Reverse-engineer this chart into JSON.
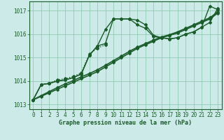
{
  "bg_color": "#cceae7",
  "grid_color": "#88c4aa",
  "line_color": "#1a5c2a",
  "title": "Graphe pression niveau de la mer (hPa)",
  "xlim": [
    -0.5,
    23.5
  ],
  "ylim": [
    1012.8,
    1017.4
  ],
  "yticks": [
    1013,
    1014,
    1015,
    1016,
    1017
  ],
  "xticks": [
    0,
    1,
    2,
    3,
    4,
    5,
    6,
    7,
    8,
    9,
    10,
    11,
    12,
    13,
    14,
    15,
    16,
    17,
    18,
    19,
    20,
    21,
    22,
    23
  ],
  "series": [
    {
      "x": [
        0,
        1,
        2,
        3,
        4,
        5,
        6,
        7,
        8,
        9,
        10,
        11,
        12,
        13,
        14,
        15,
        16,
        17,
        18,
        19,
        20,
        21,
        22,
        23
      ],
      "y": [
        1013.2,
        1013.85,
        1013.9,
        1014.0,
        1014.05,
        1014.15,
        1014.3,
        1015.1,
        1015.5,
        1016.2,
        1016.65,
        1016.65,
        1016.65,
        1016.4,
        1016.25,
        1015.9,
        1015.85,
        1015.8,
        1015.85,
        1016.0,
        1016.1,
        1016.3,
        1016.5,
        1017.1
      ],
      "marker": "D",
      "markersize": 2.0,
      "linewidth": 1.0,
      "linestyle": "-"
    },
    {
      "x": [
        0,
        1,
        2,
        3,
        4,
        5,
        6,
        7,
        8,
        9,
        10,
        11,
        12,
        13,
        14,
        15,
        16,
        17,
        18,
        19,
        20,
        21,
        22,
        23
      ],
      "y": [
        1013.2,
        1013.85,
        1013.9,
        1014.0,
        1014.05,
        1014.15,
        1014.3,
        1015.1,
        1015.5,
        1015.6,
        1016.65,
        1016.65,
        1016.65,
        1016.6,
        1016.4,
        1015.95,
        1015.85,
        1015.8,
        1015.85,
        1016.0,
        1016.1,
        1016.3,
        1017.2,
        1017.05
      ],
      "marker": "D",
      "markersize": 2.0,
      "linewidth": 1.0,
      "linestyle": "-"
    },
    {
      "x": [
        0,
        1,
        2,
        3,
        4,
        5,
        6,
        7,
        8,
        9
      ],
      "y": [
        1013.2,
        1013.85,
        1013.9,
        1014.05,
        1014.1,
        1014.2,
        1014.35,
        1015.15,
        1015.4,
        1015.55
      ],
      "marker": "D",
      "markersize": 2.0,
      "linewidth": 1.0,
      "linestyle": ":"
    },
    {
      "x": [
        0,
        1,
        2,
        3,
        4,
        5,
        6,
        7,
        8,
        9,
        10,
        11,
        12,
        13,
        14,
        15,
        16,
        17,
        18,
        19,
        20,
        21,
        22,
        23
      ],
      "y": [
        1013.2,
        1013.35,
        1013.5,
        1013.65,
        1013.8,
        1013.95,
        1014.1,
        1014.25,
        1014.4,
        1014.6,
        1014.8,
        1015.0,
        1015.2,
        1015.4,
        1015.55,
        1015.7,
        1015.85,
        1015.95,
        1016.05,
        1016.2,
        1016.35,
        1016.5,
        1016.65,
        1016.9
      ],
      "marker": "D",
      "markersize": 2.0,
      "linewidth": 1.2,
      "linestyle": "-"
    },
    {
      "x": [
        0,
        1,
        2,
        3,
        4,
        5,
        6,
        7,
        8,
        9,
        10,
        11,
        12,
        13,
        14,
        15,
        16,
        17,
        18,
        19,
        20,
        21,
        22,
        23
      ],
      "y": [
        1013.2,
        1013.38,
        1013.55,
        1013.72,
        1013.88,
        1014.02,
        1014.18,
        1014.32,
        1014.48,
        1014.67,
        1014.87,
        1015.07,
        1015.27,
        1015.45,
        1015.6,
        1015.75,
        1015.88,
        1015.98,
        1016.1,
        1016.25,
        1016.4,
        1016.55,
        1016.7,
        1016.95
      ],
      "marker": "D",
      "markersize": 2.0,
      "linewidth": 1.2,
      "linestyle": "-"
    }
  ]
}
